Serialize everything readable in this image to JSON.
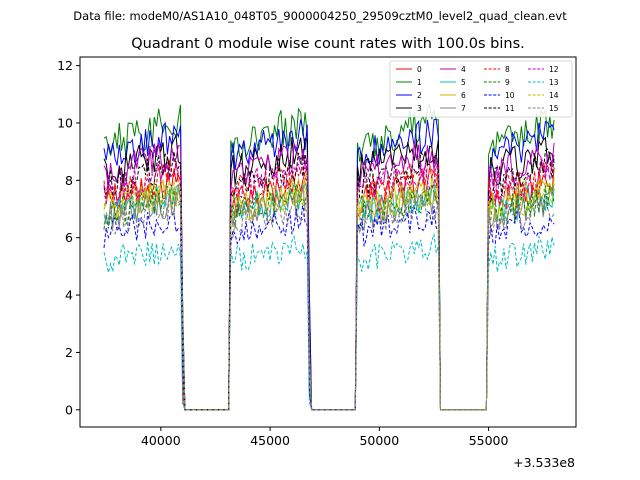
{
  "suptitle": "Data file: modeM0/AS1A10_048T05_9000004250_29509cztM0_level2_quad_clean.evt",
  "chart_data": {
    "type": "line",
    "title": "Quadrant 0 module wise count rates with 100.0s bins.",
    "xlabel": "",
    "ylabel": "",
    "x_offset_label": "+3.533e8",
    "xlim": [
      36300,
      59000
    ],
    "ylim": [
      -0.6,
      12.3
    ],
    "xticks": [
      40000,
      45000,
      50000,
      55000
    ],
    "xtick_labels": [
      "40000",
      "45000",
      "50000",
      "55000"
    ],
    "yticks": [
      0,
      2,
      4,
      6,
      8,
      10,
      12
    ],
    "ytick_labels": [
      "0",
      "2",
      "4",
      "6",
      "8",
      "10",
      "12"
    ],
    "bin_width": 100,
    "active_segments": [
      [
        37400,
        40950
      ],
      [
        43200,
        46750
      ],
      [
        49000,
        52700
      ],
      [
        55000,
        58000
      ]
    ],
    "gaps": [
      [
        41100,
        43100
      ],
      [
        46900,
        48900
      ],
      [
        52800,
        54900
      ]
    ],
    "series": [
      {
        "name": "0",
        "color": "#ff0000",
        "dash": "solid",
        "level": 7.8
      },
      {
        "name": "1",
        "color": "#008000",
        "dash": "solid",
        "level": 9.9
      },
      {
        "name": "2",
        "color": "#0000ff",
        "dash": "solid",
        "level": 9.5
      },
      {
        "name": "3",
        "color": "#000000",
        "dash": "solid",
        "level": 8.9
      },
      {
        "name": "4",
        "color": "#bf00bf",
        "dash": "solid",
        "level": 8.8
      },
      {
        "name": "5",
        "color": "#00bfbf",
        "dash": "solid",
        "level": 7.4
      },
      {
        "name": "6",
        "color": "#bfbf00",
        "dash": "solid",
        "level": 7.6
      },
      {
        "name": "7",
        "color": "#808080",
        "dash": "solid",
        "level": 7.2
      },
      {
        "name": "8",
        "color": "#ff0000",
        "dash": "dashed",
        "level": 8.1
      },
      {
        "name": "9",
        "color": "#008000",
        "dash": "dashed",
        "level": 7.3
      },
      {
        "name": "10",
        "color": "#0000ff",
        "dash": "dashed",
        "level": 6.6
      },
      {
        "name": "11",
        "color": "#000000",
        "dash": "dashed",
        "level": 8.4
      },
      {
        "name": "12",
        "color": "#bf00bf",
        "dash": "dashed",
        "level": 8.2
      },
      {
        "name": "13",
        "color": "#00bfbf",
        "dash": "dashed",
        "level": 5.6
      },
      {
        "name": "14",
        "color": "#bfbf00",
        "dash": "dashed",
        "level": 7.5
      },
      {
        "name": "15",
        "color": "#808080",
        "dash": "dashed",
        "level": 7.0
      }
    ],
    "legend_position": "top-right"
  }
}
